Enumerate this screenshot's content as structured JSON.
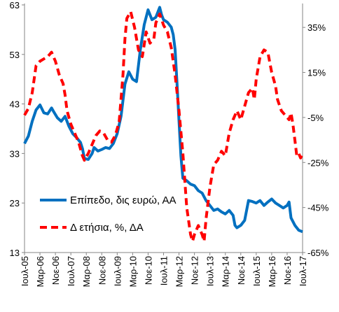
{
  "chart_data": {
    "type": "line",
    "x_labels": [
      "Ιουλ-05",
      "Μαρ-06",
      "Νοε-06",
      "Ιουλ-07",
      "Μαρ-08",
      "Νοε-08",
      "Ιουλ-09",
      "Μαρ-10",
      "Νοε-10",
      "Ιουλ-11",
      "Μαρ-12",
      "Νοε-12",
      "Ιουλ-13",
      "Μαρ-14",
      "Νοε-14",
      "Ιουλ-15",
      "Μαρ-16",
      "Νοε-16",
      "Ιουλ-17"
    ],
    "y_left": {
      "ticks": [
        "13",
        "23",
        "33",
        "43",
        "53",
        "63"
      ],
      "ylim": [
        13,
        63
      ]
    },
    "y_right": {
      "ticks": [
        "-65%",
        "-45%",
        "-25%",
        "-5%",
        "15%",
        "35%"
      ],
      "ylim": [
        -65,
        45
      ]
    },
    "legend": {
      "position": "bottom-left"
    },
    "series": [
      {
        "name": "Επίπεδο, δις ευρώ, ΑΑ",
        "axis": "left",
        "color": "#0070C0",
        "style": "solid",
        "values": [
          [
            0,
            35.0
          ],
          [
            2,
            36.5
          ],
          [
            4,
            39.5
          ],
          [
            6,
            41.8
          ],
          [
            8,
            42.8
          ],
          [
            10,
            41.2
          ],
          [
            12,
            41.0
          ],
          [
            14,
            42.2
          ],
          [
            15,
            41.5
          ],
          [
            17,
            40.2
          ],
          [
            19,
            39.5
          ],
          [
            21,
            40.5
          ],
          [
            23,
            38.5
          ],
          [
            25,
            37.0
          ],
          [
            27,
            36.2
          ],
          [
            29,
            35.2
          ],
          [
            30,
            34.0
          ],
          [
            31,
            32.0
          ],
          [
            33,
            31.8
          ],
          [
            35,
            33.0
          ],
          [
            36,
            34.2
          ],
          [
            38,
            33.5
          ],
          [
            40,
            33.8
          ],
          [
            42,
            34.2
          ],
          [
            44,
            34.0
          ],
          [
            46,
            35.0
          ],
          [
            48,
            37.0
          ],
          [
            50,
            40.5
          ],
          [
            52,
            47.0
          ],
          [
            54,
            49.5
          ],
          [
            56,
            48.0
          ],
          [
            58,
            47.5
          ],
          [
            60,
            54.0
          ],
          [
            62,
            59.0
          ],
          [
            64,
            62.0
          ],
          [
            66,
            60.0
          ],
          [
            68,
            60.5
          ],
          [
            70,
            62.5
          ],
          [
            71,
            61.0
          ],
          [
            72,
            60.0
          ],
          [
            74,
            59.5
          ],
          [
            76,
            58.5
          ],
          [
            77,
            57.0
          ],
          [
            78,
            54.0
          ],
          [
            79,
            47.0
          ],
          [
            80,
            39.5
          ],
          [
            81,
            32.5
          ],
          [
            82,
            28.0
          ],
          [
            84,
            27.5
          ],
          [
            86,
            26.8
          ],
          [
            88,
            26.5
          ],
          [
            90,
            25.5
          ],
          [
            92,
            25.0
          ],
          [
            94,
            23.5
          ],
          [
            96,
            22.5
          ],
          [
            98,
            21.5
          ],
          [
            100,
            21.8
          ],
          [
            102,
            21.2
          ],
          [
            104,
            20.8
          ],
          [
            106,
            21.5
          ],
          [
            108,
            20.5
          ],
          [
            109,
            18.5
          ],
          [
            110,
            18.0
          ],
          [
            112,
            18.5
          ],
          [
            114,
            19.5
          ],
          [
            116,
            23.5
          ],
          [
            118,
            23.3
          ],
          [
            120,
            23.0
          ],
          [
            122,
            23.5
          ],
          [
            124,
            22.5
          ],
          [
            126,
            23.2
          ],
          [
            128,
            23.8
          ],
          [
            130,
            23.0
          ],
          [
            132,
            22.5
          ],
          [
            134,
            22.0
          ],
          [
            136,
            22.5
          ],
          [
            137,
            23.2
          ],
          [
            138,
            20.0
          ],
          [
            140,
            18.5
          ],
          [
            142,
            17.5
          ],
          [
            144,
            17.2
          ]
        ]
      },
      {
        "name": "Δ ετήσια, %, ΔΑ",
        "axis": "right",
        "color": "#FF0000",
        "style": "dashed",
        "values": [
          [
            0,
            -4
          ],
          [
            2,
            -1
          ],
          [
            4,
            6
          ],
          [
            6,
            18
          ],
          [
            8,
            20
          ],
          [
            10,
            21
          ],
          [
            12,
            22
          ],
          [
            14,
            24
          ],
          [
            16,
            20
          ],
          [
            18,
            14
          ],
          [
            20,
            10
          ],
          [
            21,
            5
          ],
          [
            22,
            -2
          ],
          [
            24,
            -8
          ],
          [
            26,
            -12
          ],
          [
            28,
            -16
          ],
          [
            30,
            -22
          ],
          [
            31,
            -24
          ],
          [
            33,
            -21
          ],
          [
            35,
            -17
          ],
          [
            37,
            -13
          ],
          [
            39,
            -11
          ],
          [
            41,
            -12
          ],
          [
            43,
            -15
          ],
          [
            45,
            -16
          ],
          [
            47,
            -13
          ],
          [
            49,
            -7
          ],
          [
            51,
            14
          ],
          [
            52,
            30
          ],
          [
            53,
            39
          ],
          [
            55,
            42
          ],
          [
            57,
            35
          ],
          [
            59,
            25
          ],
          [
            61,
            22
          ],
          [
            63,
            33
          ],
          [
            65,
            28
          ],
          [
            67,
            30
          ],
          [
            68,
            37
          ],
          [
            70,
            41
          ],
          [
            72,
            36
          ],
          [
            74,
            33
          ],
          [
            76,
            26
          ],
          [
            78,
            14
          ],
          [
            80,
            -2
          ],
          [
            82,
            -21
          ],
          [
            84,
            -45
          ],
          [
            86,
            -57
          ],
          [
            87,
            -60
          ],
          [
            88,
            -57
          ],
          [
            90,
            -53
          ],
          [
            92,
            -57
          ],
          [
            93,
            -60
          ],
          [
            94,
            -50
          ],
          [
            96,
            -36
          ],
          [
            98,
            -26
          ],
          [
            100,
            -24
          ],
          [
            102,
            -20
          ],
          [
            104,
            -22
          ],
          [
            106,
            -12
          ],
          [
            108,
            -6
          ],
          [
            110,
            -2
          ],
          [
            112,
            -6
          ],
          [
            114,
            0
          ],
          [
            116,
            6
          ],
          [
            118,
            8
          ],
          [
            119,
            3
          ],
          [
            120,
            12
          ],
          [
            122,
            22
          ],
          [
            124,
            25
          ],
          [
            126,
            24
          ],
          [
            128,
            15
          ],
          [
            130,
            9
          ],
          [
            131,
            3
          ],
          [
            133,
            -2
          ],
          [
            135,
            -4
          ],
          [
            137,
            -6
          ],
          [
            138,
            -3
          ],
          [
            139,
            -8
          ],
          [
            140,
            -15
          ],
          [
            141,
            -22
          ],
          [
            142,
            -21
          ],
          [
            143,
            -23
          ],
          [
            144,
            -21
          ]
        ]
      }
    ]
  }
}
